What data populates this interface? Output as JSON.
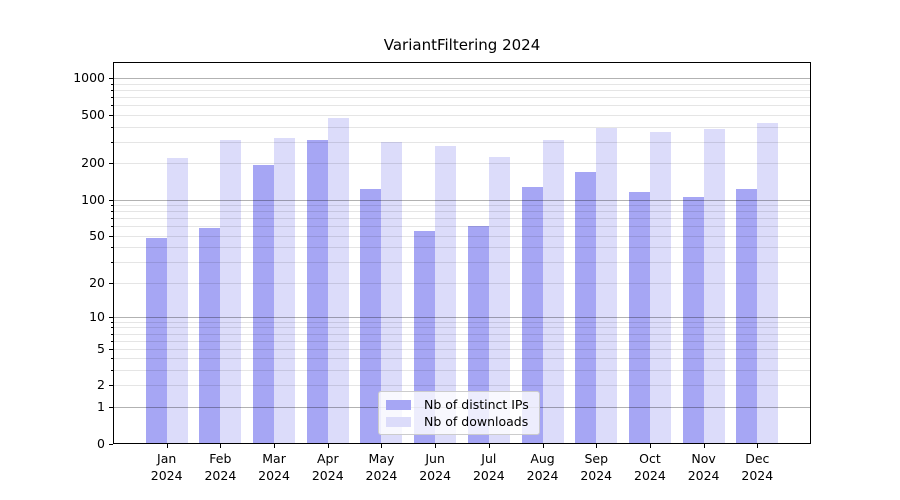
{
  "chart_data": {
    "type": "bar",
    "title": "VariantFiltering 2024",
    "categories": [
      "Jan",
      "Feb",
      "Mar",
      "Apr",
      "May",
      "Jun",
      "Jul",
      "Aug",
      "Sep",
      "Oct",
      "Nov",
      "Dec"
    ],
    "x_tick_year": "2024",
    "series": [
      {
        "name": "Nb of distinct IPs",
        "color": "#a6a6f4",
        "values": [
          48,
          58,
          193,
          312,
          123,
          55,
          60,
          128,
          170,
          116,
          105,
          123
        ]
      },
      {
        "name": "Nb of downloads",
        "color": "#dcdcfa",
        "values": [
          222,
          310,
          325,
          475,
          298,
          280,
          227,
          310,
          392,
          365,
          383,
          433
        ]
      }
    ],
    "y_scale": "log10(value+1)",
    "y_ticks": [
      0,
      1,
      2,
      5,
      10,
      20,
      50,
      100,
      200,
      500,
      1000
    ],
    "ylim": [
      0,
      1350
    ],
    "grid": {
      "show": true,
      "orientation": "horizontal",
      "major_lines_at": [
        1,
        10,
        100,
        1000
      ],
      "major_color": "#b3b3b3",
      "minor_color": "#e7e7e7"
    },
    "legend": {
      "position": "lower center",
      "framed": true
    },
    "axis_color": "#000000",
    "background_color": "#ffffff"
  }
}
